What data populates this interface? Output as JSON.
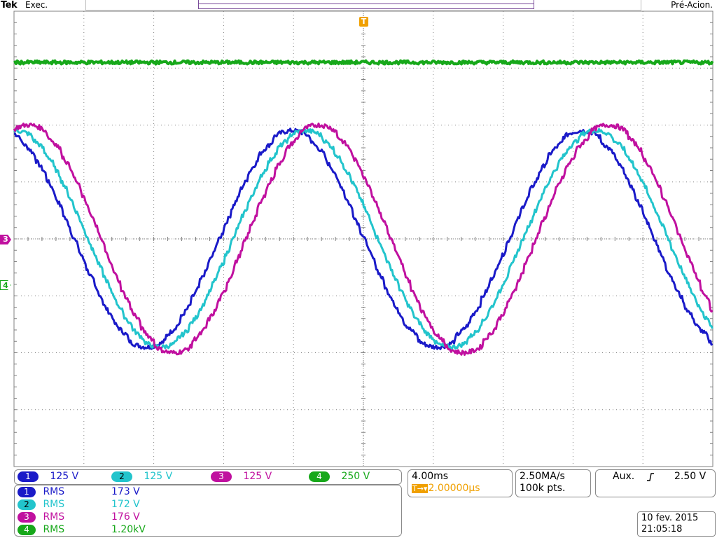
{
  "status_bar": {
    "brand": "Tek",
    "run_state": "Exec.",
    "acquisition_state": "Pré-Acion."
  },
  "colors": {
    "ch1": "#1a1ac8",
    "ch2": "#22c4cc",
    "ch3": "#c0109f",
    "ch4": "#17a81a",
    "grid": "#808080",
    "trigger": "#f0a000"
  },
  "markers": {
    "trigger_top": "T",
    "ch3_ground": "3",
    "ch4_ground": "4"
  },
  "channels": [
    {
      "id": "1",
      "scale": "125 V",
      "meas_label": "RMS",
      "meas_value": "173 V"
    },
    {
      "id": "2",
      "scale": "125 V",
      "meas_label": "RMS",
      "meas_value": "172 V"
    },
    {
      "id": "3",
      "scale": "125 V",
      "meas_label": "RMS",
      "meas_value": "176 V"
    },
    {
      "id": "4",
      "scale": "250 V",
      "meas_label": "RMS",
      "meas_value": "1.20kV"
    }
  ],
  "horizontal": {
    "time_per_div": "4.00ms",
    "trigger_delay_icon": "T→▾",
    "trigger_delay": "2.00000µs"
  },
  "acquisition": {
    "sample_rate": "2.50MA/s",
    "record_length": "100k pts."
  },
  "trigger": {
    "source": "Aux.",
    "slope_icon": "rising-edge",
    "level": "2.50 V"
  },
  "timestamp": {
    "date": "10 fev. 2015",
    "time": "21:05:18"
  },
  "chart_data": {
    "type": "line",
    "xlabel": "",
    "ylabel": "",
    "x_divisions": 10,
    "y_divisions": 8,
    "xlim_ms": [
      0,
      40
    ],
    "ylim_div": [
      -4,
      4
    ],
    "grid": true,
    "period_ms": 16.6,
    "series": [
      {
        "id": "ch1",
        "color": "#1a1ac8",
        "amplitude_div": 1.9,
        "offset_div": 0.0,
        "phase_deg": 105,
        "steps": 6
      },
      {
        "id": "ch2",
        "color": "#22c4cc",
        "amplitude_div": 1.9,
        "offset_div": 0.0,
        "phase_deg": 88,
        "steps": 8
      },
      {
        "id": "ch3",
        "color": "#c0109f",
        "amplitude_div": 2.0,
        "offset_div": 0.0,
        "phase_deg": 72,
        "steps": 6
      },
      {
        "id": "ch4",
        "color": "#17a81a",
        "amplitude_div": 0.0,
        "offset_div": 3.1,
        "phase_deg": 0,
        "steps": 0
      }
    ]
  }
}
